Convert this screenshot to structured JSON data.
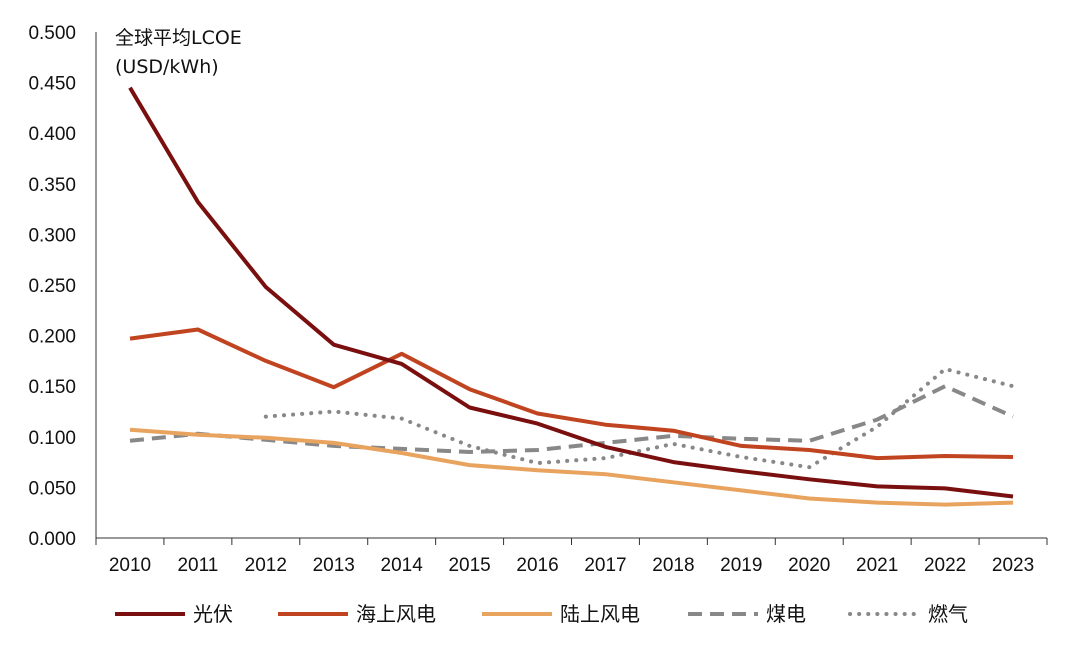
{
  "chart_data": {
    "type": "line",
    "title": "",
    "ylabel_line1": "全球平均LCOE",
    "ylabel_line2": "(USD/kWh)",
    "xlabel": "",
    "categories": [
      "2010",
      "2011",
      "2012",
      "2013",
      "2014",
      "2015",
      "2016",
      "2017",
      "2018",
      "2019",
      "2020",
      "2021",
      "2022",
      "2023"
    ],
    "ylim": [
      0,
      0.5
    ],
    "yticks": [
      "0.000",
      "0.050",
      "0.100",
      "0.150",
      "0.200",
      "0.250",
      "0.300",
      "0.350",
      "0.400",
      "0.450",
      "0.500"
    ],
    "legend_position": "bottom",
    "grid": false,
    "series": [
      {
        "name": "光伏",
        "color": "#7a0f0f",
        "style": "solid",
        "values": [
          0.445,
          0.332,
          0.248,
          0.191,
          0.172,
          0.129,
          0.113,
          0.09,
          0.075,
          0.066,
          0.058,
          0.051,
          0.049,
          0.041
        ]
      },
      {
        "name": "海上风电",
        "color": "#c0441f",
        "style": "solid",
        "values": [
          0.197,
          0.206,
          0.175,
          0.149,
          0.182,
          0.147,
          0.123,
          0.112,
          0.106,
          0.091,
          0.087,
          0.079,
          0.081,
          0.08
        ]
      },
      {
        "name": "陆上风电",
        "color": "#e8a35e",
        "style": "solid",
        "values": [
          0.107,
          0.102,
          0.099,
          0.094,
          0.084,
          0.072,
          0.067,
          0.063,
          0.055,
          0.047,
          0.039,
          0.035,
          0.033,
          0.035
        ]
      },
      {
        "name": "煤电",
        "color": "#888888",
        "style": "dashed",
        "values": [
          0.096,
          0.103,
          0.097,
          0.091,
          0.088,
          0.085,
          0.087,
          0.094,
          0.101,
          0.098,
          0.096,
          0.117,
          0.15,
          0.12
        ]
      },
      {
        "name": "燃气",
        "color": "#888888",
        "style": "dotted",
        "values": [
          null,
          null,
          0.12,
          0.125,
          0.118,
          0.091,
          0.074,
          0.079,
          0.093,
          0.08,
          0.07,
          0.11,
          0.167,
          0.15
        ]
      }
    ]
  }
}
